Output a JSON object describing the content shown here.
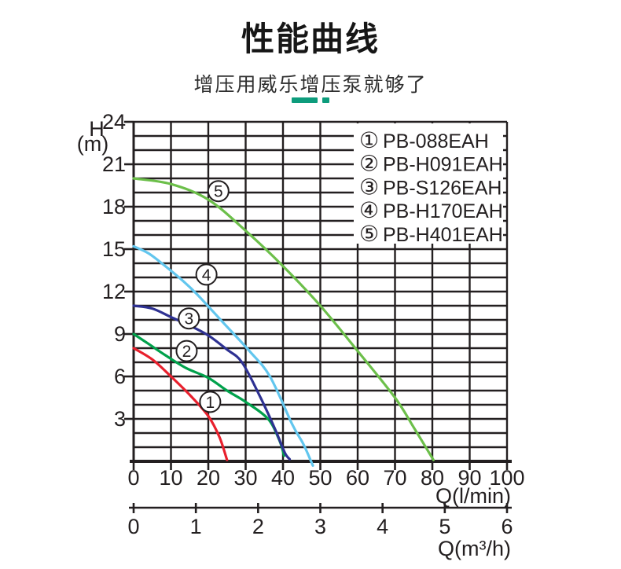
{
  "header": {
    "title": "性能曲线",
    "subtitle": "增压用威乐增压泵就够了",
    "accent_color": "#0d9c7c"
  },
  "chart_data": {
    "type": "line",
    "title": "性能曲线",
    "ink_color": "#231f20",
    "grid": "on",
    "legend_position": "top-right",
    "y_axis": {
      "name": "H",
      "unit": "(m)",
      "min": 0,
      "max": 24,
      "minor_step": 1,
      "major_ticks": [
        3,
        6,
        9,
        12,
        15,
        18,
        21,
        24
      ]
    },
    "x_axis_lmin": {
      "label": "Q(l/min)",
      "min": 0,
      "max": 100,
      "ticks": [
        0,
        10,
        20,
        30,
        40,
        50,
        60,
        70,
        80,
        90,
        100
      ]
    },
    "x_axis_m3h": {
      "label": "Q(m³/h)",
      "min": 0,
      "max": 6,
      "ticks": [
        0,
        1,
        2,
        3,
        4,
        5,
        6
      ]
    },
    "series": [
      {
        "digit": "1",
        "bullet": "①",
        "name": "PB-088EAH",
        "color": "#e8202d",
        "marker_at": {
          "q": 20.5,
          "h": 4.2
        },
        "points": [
          [
            0,
            8.0
          ],
          [
            5,
            7.2
          ],
          [
            10,
            6.0
          ],
          [
            15,
            4.7
          ],
          [
            20,
            3.2
          ],
          [
            23,
            1.7
          ],
          [
            25,
            0.1
          ]
        ]
      },
      {
        "digit": "2",
        "bullet": "②",
        "name": "PB-H091EAH",
        "color": "#00a14b",
        "marker_at": {
          "q": 14.2,
          "h": 7.8
        },
        "points": [
          [
            0,
            9.0
          ],
          [
            4,
            8.3
          ],
          [
            8.5,
            7.5
          ],
          [
            14,
            6.6
          ],
          [
            20,
            5.9
          ],
          [
            25,
            5.0
          ],
          [
            30,
            4.2
          ],
          [
            36,
            3.0
          ],
          [
            39,
            1.5
          ],
          [
            40.3,
            0.4
          ]
        ]
      },
      {
        "digit": "3",
        "bullet": "③",
        "name": "PB-S126EAH",
        "color": "#2e3192",
        "marker_at": {
          "q": 14.8,
          "h": 10.1
        },
        "points": [
          [
            0,
            11.0
          ],
          [
            5,
            10.8
          ],
          [
            10,
            10.2
          ],
          [
            15,
            9.6
          ],
          [
            20,
            8.9
          ],
          [
            25,
            7.9
          ],
          [
            29,
            7.0
          ],
          [
            34,
            4.5
          ],
          [
            38,
            2.2
          ],
          [
            40.5,
            0.6
          ],
          [
            41.8,
            0.15
          ]
        ]
      },
      {
        "digit": "4",
        "bullet": "④",
        "name": "PB-H170EAH",
        "color": "#62c6ee",
        "marker_at": {
          "q": 19.5,
          "h": 13.2
        },
        "points": [
          [
            0,
            15.2
          ],
          [
            4,
            14.7
          ],
          [
            8,
            13.9
          ],
          [
            13,
            12.8
          ],
          [
            17,
            11.8
          ],
          [
            24,
            9.8
          ],
          [
            31,
            7.8
          ],
          [
            36.5,
            6.0
          ],
          [
            42.5,
            2.6
          ],
          [
            45.5,
            1.2
          ],
          [
            48,
            -0.3
          ]
        ]
      },
      {
        "digit": "5",
        "bullet": "⑤",
        "name": "PB-H401EAH",
        "color": "#6cbf4a",
        "marker_at": {
          "q": 22.7,
          "h": 19.1
        },
        "points": [
          [
            0,
            20.0
          ],
          [
            10,
            19.6
          ],
          [
            20,
            18.5
          ],
          [
            30,
            16.3
          ],
          [
            40,
            13.8
          ],
          [
            50,
            11.0
          ],
          [
            60,
            7.8
          ],
          [
            70,
            4.5
          ],
          [
            75,
            2.4
          ],
          [
            80.3,
            0.1
          ]
        ]
      }
    ]
  }
}
